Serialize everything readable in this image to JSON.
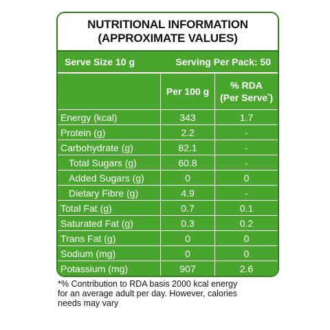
{
  "title": {
    "line1": "NUTRITIONAL INFORMATION",
    "line2": "(APPROXIMATE VALUES)"
  },
  "serve": {
    "size": "Serve Size 10 g",
    "per_pack": "Serving Per Pack: 50"
  },
  "columns": {
    "per100": "Per 100 g",
    "rda_line1": "% RDA",
    "rda_line2": "(Per Serve",
    "rda_mark": "*",
    "rda_close": ")"
  },
  "rows": [
    {
      "name": "Energy (kcal)",
      "per100": "343",
      "rda": "1.7",
      "indent": false
    },
    {
      "name": "Protein (g)",
      "per100": "2.2",
      "rda": "-",
      "indent": false
    },
    {
      "name": "Carbohydrate (g)",
      "per100": "82.1",
      "rda": "-",
      "indent": false
    },
    {
      "name": "Total Sugars (g)",
      "per100": "60.8",
      "rda": "-",
      "indent": true
    },
    {
      "name": "Added Sugars (g)",
      "per100": "0",
      "rda": "0",
      "indent": true
    },
    {
      "name": "Dietary Fibre (g)",
      "per100": "4.9",
      "rda": "-",
      "indent": true
    },
    {
      "name": "Total Fat (g)",
      "per100": "0.7",
      "rda": "0.1",
      "indent": false
    },
    {
      "name": "Saturated Fat (g)",
      "per100": "0.3",
      "rda": "0.2",
      "indent": false
    },
    {
      "name": "Trans Fat (g)",
      "per100": "0",
      "rda": "0",
      "indent": false
    },
    {
      "name": "Sodium (mg)",
      "per100": "0",
      "rda": "0",
      "indent": false
    },
    {
      "name": "Potassium (mg)",
      "per100": "907",
      "rda": "2.6",
      "indent": false
    }
  ],
  "footnote": {
    "line1": "*% Contribution to RDA basis 2000 kcal energy",
    "line2": "for an average adult per day. However, calories",
    "line3": "needs may vary"
  },
  "colors": {
    "panel_green": "#4aa52e",
    "border_green": "#2f7d1f",
    "text_dark": "#111111"
  }
}
